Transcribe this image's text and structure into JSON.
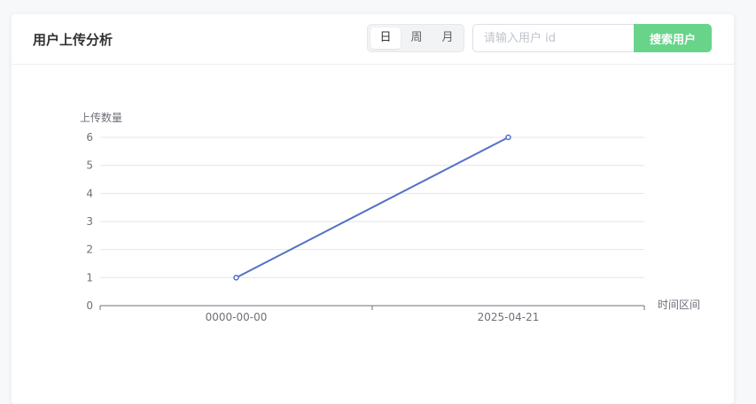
{
  "header": {
    "title": "用户上传分析",
    "periods": [
      "日",
      "周",
      "月"
    ],
    "active_period": "日",
    "search_placeholder": "请输入用户 id",
    "search_value": "",
    "search_button": "搜索用户"
  },
  "colors": {
    "accent": "#67d48a",
    "line": "#5470c6"
  },
  "chart_data": {
    "type": "line",
    "categories": [
      "0000-00-00",
      "2025-04-21"
    ],
    "values": [
      1,
      6
    ],
    "title": "",
    "xlabel": "时间区间",
    "ylabel": "上传数量",
    "ylim": [
      0,
      6
    ],
    "yticks": [
      0,
      1,
      2,
      3,
      4,
      5,
      6
    ],
    "grid": true,
    "legend": "none"
  }
}
